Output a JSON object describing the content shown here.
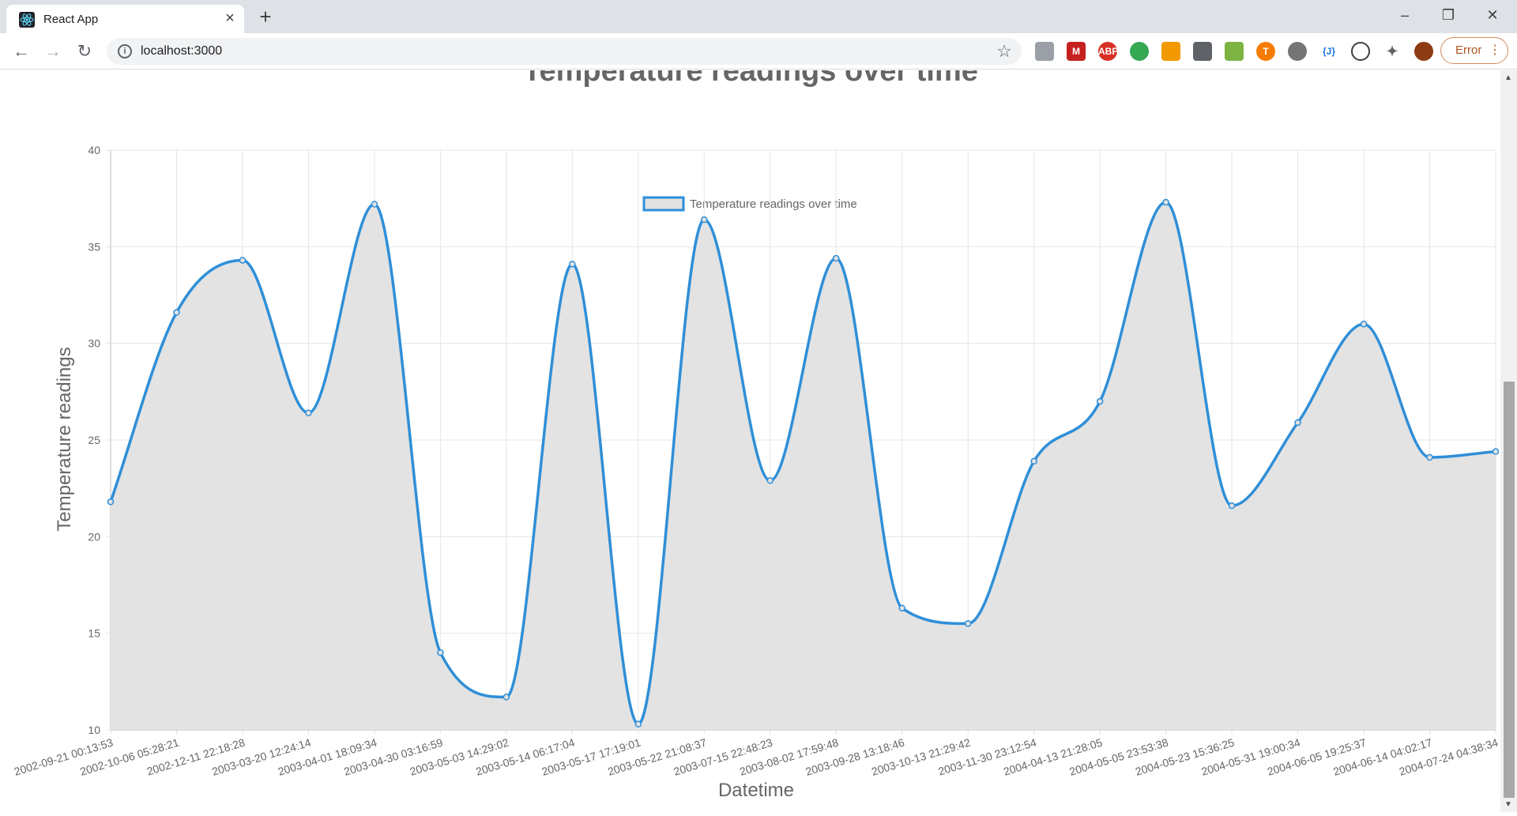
{
  "browser": {
    "tab_title": "React App",
    "url": "localhost:3000",
    "error_label": "Error"
  },
  "chart_data": {
    "type": "line",
    "title": "Temperature readings over time",
    "legend": "Temperature readings over time",
    "legend_position": "top",
    "xlabel": "Datetime",
    "ylabel": "Temperature readings",
    "ylim": [
      10,
      40
    ],
    "yticks": [
      10,
      15,
      20,
      25,
      30,
      35,
      40
    ],
    "grid": true,
    "fill": true,
    "line_color": "#2f8fd8",
    "fill_color": "#e2e2e2",
    "categories": [
      "2002-09-21 00:13:53",
      "2002-10-06 05:28:21",
      "2002-12-11 22:18:28",
      "2003-03-20 12:24:14",
      "2003-04-01 18:09:34",
      "2003-04-30 03:16:59",
      "2003-05-03 14:29:02",
      "2003-05-14 06:17:04",
      "2003-05-17 17:19:01",
      "2003-05-22 21:08:37",
      "2003-07-15 22:48:23",
      "2003-08-02 17:59:48",
      "2003-09-28 13:18:46",
      "2003-10-13 21:29:42",
      "2003-11-30 23:12:54",
      "2004-04-13 21:28:05",
      "2004-05-05 23:53:38",
      "2004-05-23 15:36:25",
      "2004-05-31 19:00:34",
      "2004-06-05 19:25:37",
      "2004-06-14 04:02:17",
      "2004-07-24 04:38:34"
    ],
    "values": [
      21.8,
      31.6,
      34.3,
      26.4,
      37.2,
      14.0,
      11.7,
      34.1,
      10.3,
      36.4,
      22.9,
      34.4,
      16.3,
      15.5,
      23.9,
      27.0,
      37.3,
      21.6,
      25.9,
      31.0,
      24.1,
      24.4
    ]
  }
}
